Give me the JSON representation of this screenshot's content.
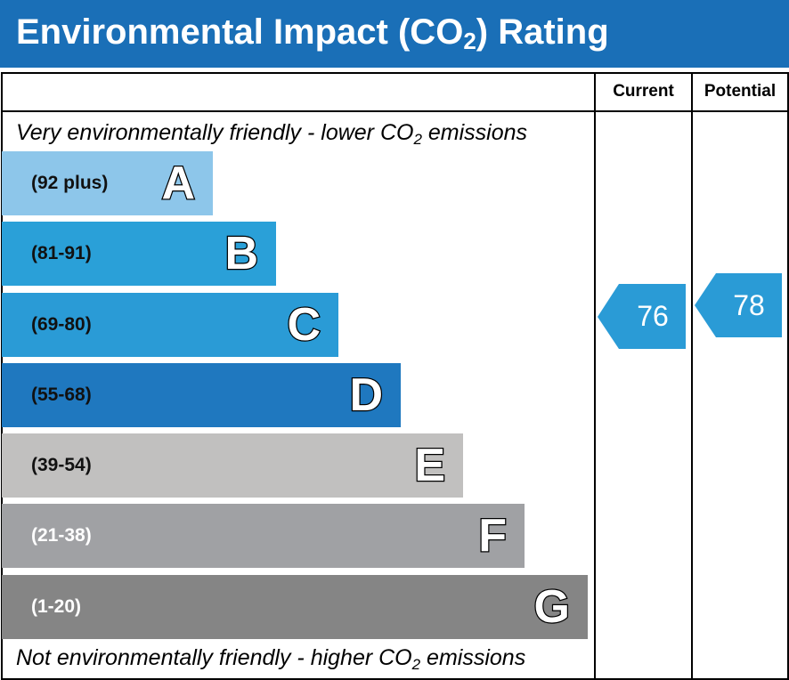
{
  "header": {
    "title_main": "Environmental Impact (CO",
    "title_sub": "2",
    "title_end": ") Rating"
  },
  "columns": {
    "current": "Current",
    "potential": "Potential"
  },
  "captions": {
    "top_main": "Very environmentally friendly - lower CO",
    "top_sub": "2",
    "top_end": " emissions",
    "bottom_main": "Not environmentally friendly - higher CO",
    "bottom_sub": "2",
    "bottom_end": " emissions"
  },
  "chart_data": {
    "type": "bar",
    "bands": [
      {
        "letter": "A",
        "range": "(92 plus)",
        "color": "#8dc6ea",
        "range_color": "#111111"
      },
      {
        "letter": "B",
        "range": "(81-91)",
        "color": "#2aa0d8",
        "range_color": "#111111"
      },
      {
        "letter": "C",
        "range": "(69-80)",
        "color": "#2a9bd6",
        "range_color": "#111111"
      },
      {
        "letter": "D",
        "range": "(55-68)",
        "color": "#1f78bf",
        "range_color": "#111111"
      },
      {
        "letter": "E",
        "range": "(39-54)",
        "color": "#c1c0bf",
        "range_color": "#111111"
      },
      {
        "letter": "F",
        "range": "(21-38)",
        "color": "#a0a1a4",
        "range_color": "#ffffff"
      },
      {
        "letter": "G",
        "range": "(1-20)",
        "color": "#858585",
        "range_color": "#ffffff"
      }
    ],
    "current": {
      "value": "76",
      "band": "C",
      "color": "#2a9bd6"
    },
    "potential": {
      "value": "78",
      "band": "C",
      "color": "#2a9bd6"
    }
  }
}
